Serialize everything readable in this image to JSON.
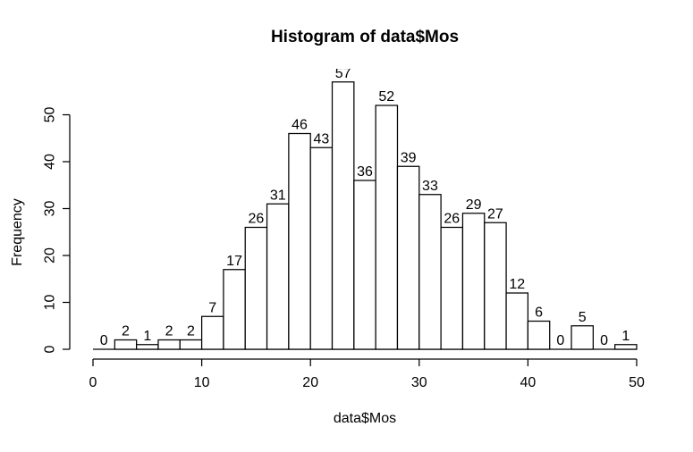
{
  "figure": {
    "background": "#ffffff"
  },
  "chart_data": {
    "type": "bar",
    "chart_kind": "histogram",
    "title": "Histogram of data$Mos",
    "xlabel": "data$Mos",
    "ylabel": "Frequency",
    "bins": {
      "start": 0,
      "width": 2,
      "end": 50
    },
    "counts": [
      0,
      2,
      1,
      2,
      2,
      7,
      17,
      26,
      31,
      46,
      43,
      57,
      36,
      52,
      39,
      33,
      26,
      29,
      27,
      12,
      6,
      0,
      5,
      0,
      1
    ],
    "x_ticks": [
      0,
      10,
      20,
      30,
      40,
      50
    ],
    "y_ticks": [
      0,
      10,
      20,
      30,
      40,
      50
    ],
    "xlim": [
      0,
      50
    ],
    "ylim": [
      0,
      50
    ],
    "grid": false,
    "legend": "none",
    "bar_fill": "#ffffff",
    "bar_stroke": "#000000",
    "axis_color": "#000000",
    "text_color": "#000000"
  }
}
